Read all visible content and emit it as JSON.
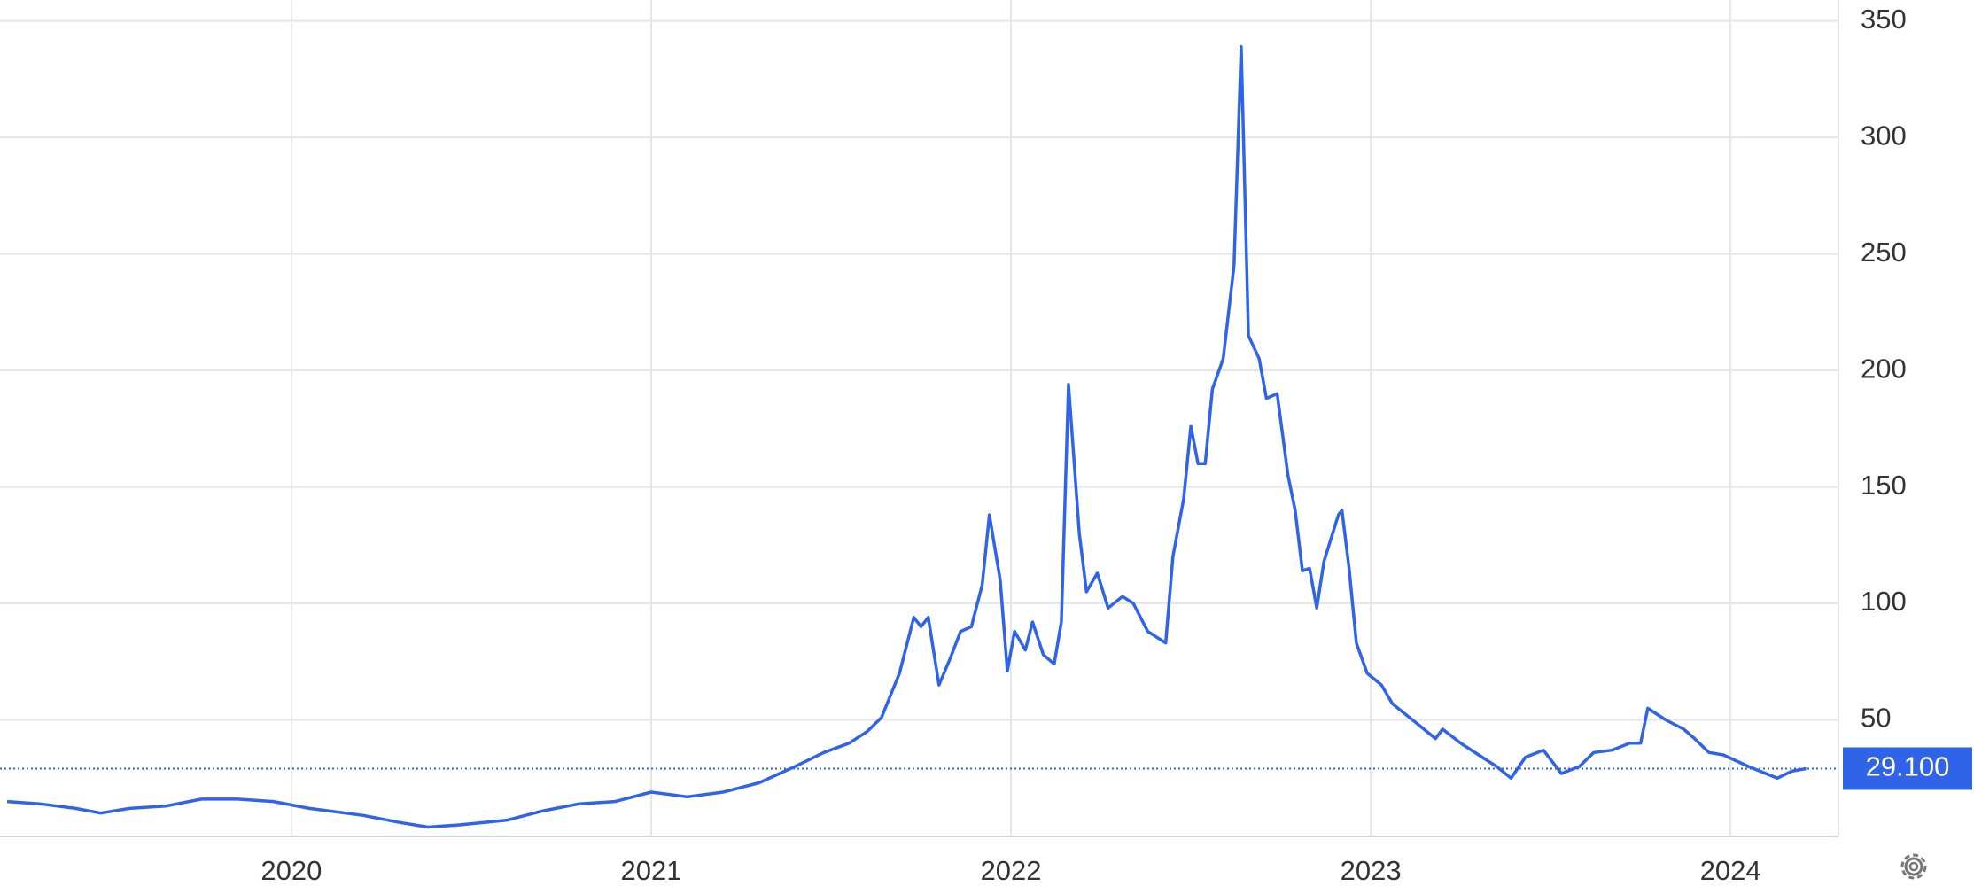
{
  "chart_data": {
    "type": "line",
    "color": "#2f63e8",
    "grid": true,
    "x": [
      2019.21,
      2019.3,
      2019.4,
      2019.47,
      2019.55,
      2019.65,
      2019.75,
      2019.85,
      2019.95,
      2020.05,
      2020.2,
      2020.3,
      2020.38,
      2020.47,
      2020.6,
      2020.7,
      2020.8,
      2020.9,
      2021.0,
      2021.1,
      2021.2,
      2021.3,
      2021.4,
      2021.48,
      2021.55,
      2021.6,
      2021.64,
      2021.69,
      2021.73,
      2021.75,
      2021.77,
      2021.8,
      2021.83,
      2021.86,
      2021.89,
      2021.92,
      2021.94,
      2021.97,
      2021.99,
      2022.01,
      2022.04,
      2022.06,
      2022.09,
      2022.12,
      2022.14,
      2022.16,
      2022.19,
      2022.21,
      2022.24,
      2022.27,
      2022.31,
      2022.34,
      2022.38,
      2022.43,
      2022.45,
      2022.48,
      2022.5,
      2022.52,
      2022.54,
      2022.56,
      2022.59,
      2022.62,
      2022.64,
      2022.66,
      2022.69,
      2022.71,
      2022.74,
      2022.77,
      2022.79,
      2022.81,
      2022.83,
      2022.85,
      2022.87,
      2022.91,
      2022.92,
      2022.94,
      2022.96,
      2022.99,
      2023.03,
      2023.06,
      2023.1,
      2023.14,
      2023.18,
      2023.2,
      2023.25,
      2023.3,
      2023.35,
      2023.39,
      2023.43,
      2023.48,
      2023.53,
      2023.58,
      2023.62,
      2023.67,
      2023.72,
      2023.75,
      2023.77,
      2023.82,
      2023.87,
      2023.9,
      2023.94,
      2023.98,
      2024.05,
      2024.13,
      2024.17,
      2024.21
    ],
    "values": [
      15,
      14,
      12,
      10,
      12,
      13,
      16,
      16,
      15,
      12,
      9,
      6,
      4,
      5,
      7,
      11,
      14,
      15,
      19,
      17,
      19,
      23,
      30,
      36,
      40,
      45,
      51,
      70,
      94,
      90,
      94,
      65,
      76,
      88,
      90,
      108,
      138,
      110,
      71,
      88,
      80,
      92,
      78,
      74,
      92,
      194,
      130,
      105,
      113,
      98,
      103,
      100,
      88,
      83,
      120,
      145,
      176,
      160,
      160,
      192,
      205,
      245,
      339,
      215,
      205,
      188,
      190,
      155,
      140,
      114,
      115,
      98,
      118,
      138,
      140,
      115,
      83,
      70,
      65,
      57,
      52,
      47,
      42,
      46,
      40,
      35,
      30,
      25,
      34,
      37,
      27,
      30,
      36,
      37,
      40,
      40,
      55,
      50,
      46,
      42,
      36,
      35,
      30,
      25,
      28,
      29.1
    ],
    "xlim": [
      2019.19,
      2024.3
    ],
    "ylim": [
      0,
      359
    ],
    "xticks": [
      2020,
      2021,
      2022,
      2023,
      2024
    ],
    "yticks": [
      50,
      100,
      150,
      200,
      250,
      300,
      350
    ],
    "current": {
      "value": 29.1,
      "label": "29.100"
    }
  }
}
